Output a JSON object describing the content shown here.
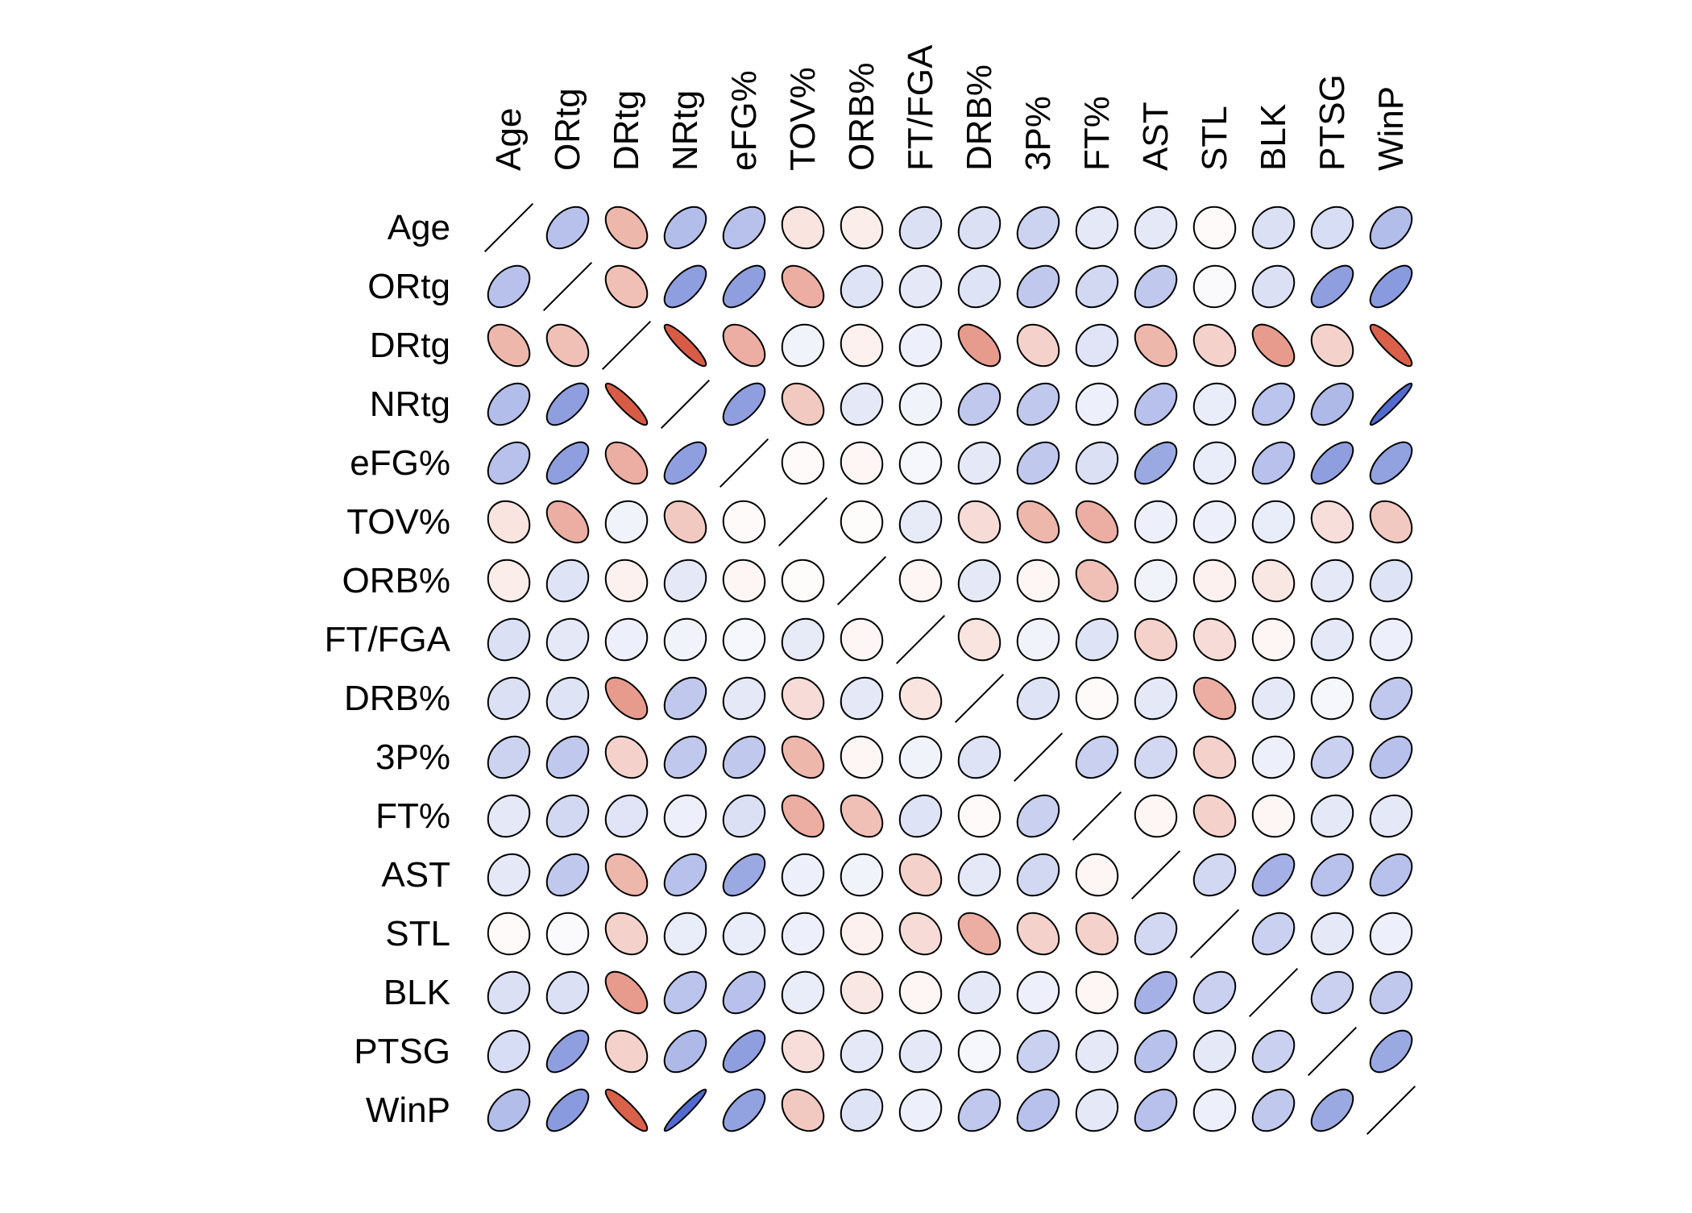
{
  "chart_data": {
    "type": "heatmap",
    "subtype": "correlation-ellipse-matrix",
    "title": "",
    "variables": [
      "Age",
      "ORtg",
      "DRtg",
      "NRtg",
      "eFG%",
      "TOV%",
      "ORB%",
      "FT/FGA",
      "DRB%",
      "3P%",
      "FT%",
      "AST",
      "STL",
      "BLK",
      "PTSG",
      "WinP"
    ],
    "value_range": [
      -1,
      1
    ],
    "color_scale": {
      "negative": "#d44a30",
      "zero": "#ffffff",
      "positive": "#4a63cc"
    },
    "diagonal": "line",
    "matrix": [
      [
        1.0,
        0.4,
        -0.4,
        0.42,
        0.4,
        -0.15,
        -0.1,
        0.2,
        0.2,
        0.28,
        0.15,
        0.15,
        -0.03,
        0.2,
        0.22,
        0.42
      ],
      [
        0.4,
        1.0,
        -0.35,
        0.62,
        0.62,
        -0.45,
        0.18,
        0.15,
        0.18,
        0.35,
        0.25,
        0.35,
        0.03,
        0.2,
        0.62,
        0.65
      ],
      [
        -0.4,
        -0.35,
        1.0,
        -0.9,
        -0.45,
        0.08,
        -0.08,
        0.1,
        -0.55,
        -0.25,
        0.17,
        -0.4,
        -0.25,
        -0.55,
        -0.25,
        -0.88
      ],
      [
        0.42,
        0.62,
        -0.9,
        1.0,
        0.62,
        -0.3,
        0.15,
        0.08,
        0.35,
        0.35,
        0.1,
        0.4,
        0.12,
        0.38,
        0.45,
        0.95
      ],
      [
        0.4,
        0.62,
        -0.45,
        0.62,
        1.0,
        -0.03,
        -0.05,
        0.05,
        0.15,
        0.35,
        0.2,
        0.55,
        0.12,
        0.4,
        0.62,
        0.6
      ],
      [
        -0.15,
        -0.45,
        0.08,
        -0.3,
        -0.03,
        1.0,
        -0.02,
        0.13,
        -0.2,
        -0.4,
        -0.45,
        0.1,
        0.1,
        0.12,
        -0.18,
        -0.3
      ],
      [
        -0.1,
        0.18,
        -0.08,
        0.15,
        -0.05,
        -0.02,
        1.0,
        -0.05,
        0.15,
        -0.05,
        -0.35,
        0.08,
        -0.08,
        -0.13,
        0.15,
        0.18
      ],
      [
        0.2,
        0.15,
        0.1,
        0.08,
        0.05,
        0.13,
        -0.05,
        1.0,
        -0.15,
        0.08,
        0.18,
        -0.25,
        -0.2,
        -0.05,
        0.15,
        0.1
      ],
      [
        0.2,
        0.18,
        -0.55,
        0.35,
        0.15,
        -0.2,
        0.15,
        -0.15,
        1.0,
        0.18,
        -0.03,
        0.15,
        -0.45,
        0.15,
        0.05,
        0.35
      ],
      [
        0.28,
        0.35,
        -0.25,
        0.35,
        0.35,
        -0.4,
        -0.05,
        0.08,
        0.18,
        1.0,
        0.3,
        0.25,
        -0.25,
        0.1,
        0.3,
        0.4
      ],
      [
        0.15,
        0.25,
        0.17,
        0.1,
        0.2,
        -0.45,
        -0.35,
        0.18,
        -0.03,
        0.3,
        1.0,
        -0.05,
        -0.25,
        -0.05,
        0.15,
        0.15
      ],
      [
        0.15,
        0.35,
        -0.4,
        0.4,
        0.55,
        0.1,
        0.08,
        -0.25,
        0.15,
        0.25,
        -0.05,
        1.0,
        0.25,
        0.5,
        0.4,
        0.4
      ],
      [
        -0.03,
        0.03,
        -0.25,
        0.12,
        0.12,
        0.1,
        -0.08,
        -0.2,
        -0.45,
        -0.25,
        -0.25,
        0.25,
        1.0,
        0.3,
        0.15,
        0.1
      ],
      [
        0.2,
        0.2,
        -0.55,
        0.38,
        0.4,
        0.12,
        -0.13,
        -0.05,
        0.15,
        0.1,
        -0.05,
        0.5,
        0.3,
        1.0,
        0.3,
        0.35
      ],
      [
        0.22,
        0.62,
        -0.25,
        0.45,
        0.62,
        -0.18,
        0.15,
        0.15,
        0.05,
        0.3,
        0.15,
        0.4,
        0.15,
        0.3,
        1.0,
        0.55
      ],
      [
        0.42,
        0.65,
        -0.88,
        0.95,
        0.6,
        -0.3,
        0.18,
        0.1,
        0.35,
        0.4,
        0.15,
        0.4,
        0.1,
        0.35,
        0.55,
        1.0
      ]
    ]
  }
}
